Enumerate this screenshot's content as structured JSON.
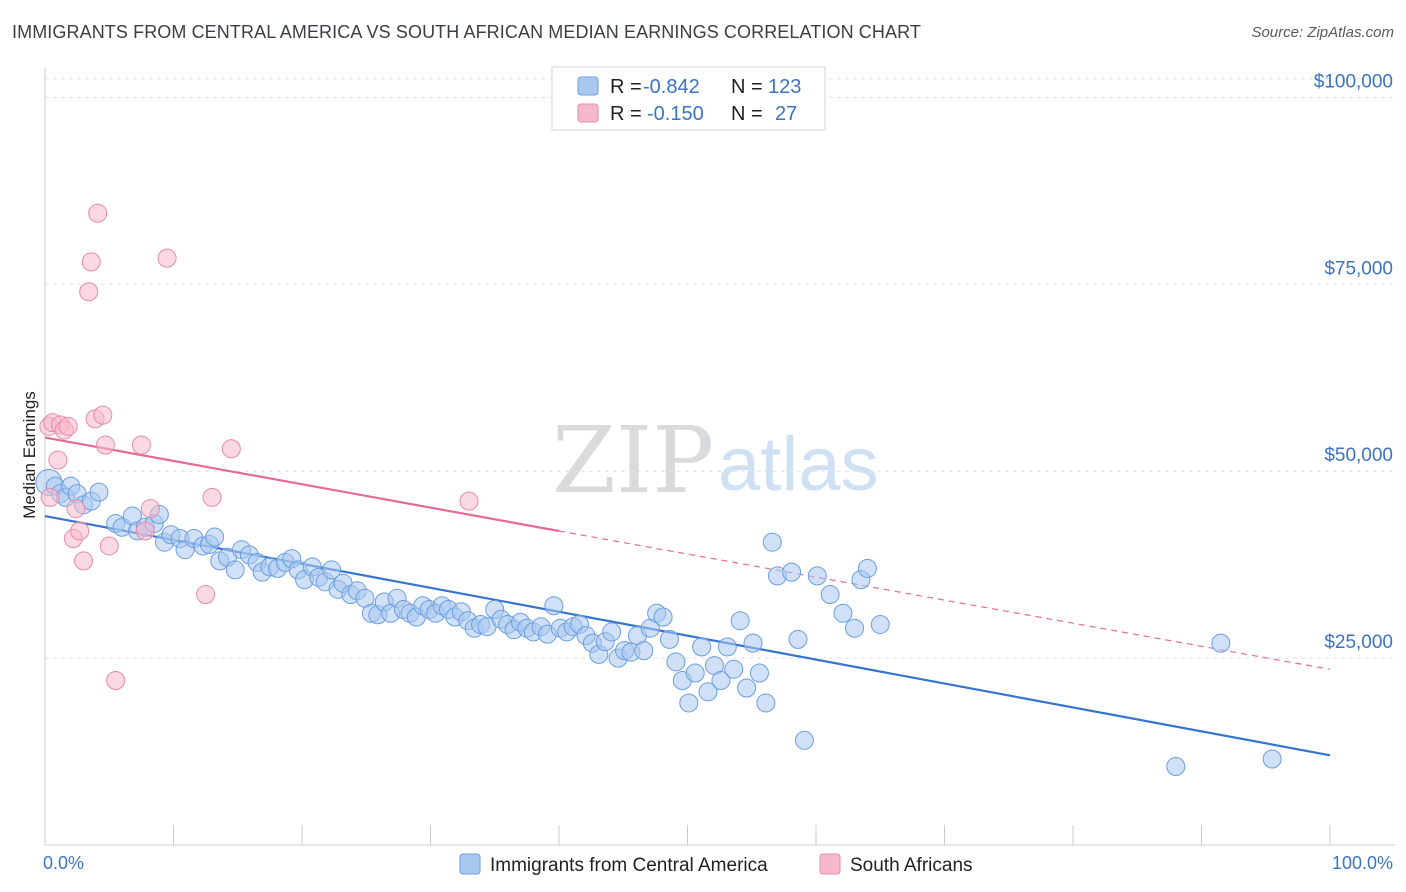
{
  "header": {
    "title": "IMMIGRANTS FROM CENTRAL AMERICA VS SOUTH AFRICAN MEDIAN EARNINGS CORRELATION CHART",
    "source": "Source: ZipAtlas.com"
  },
  "watermark": {
    "zip": "ZIP",
    "atlas": "atlas"
  },
  "legend_box": {
    "rows": [
      {
        "r_label": "R =",
        "r_value": "-0.842",
        "n_label": "N =",
        "n_value": "123",
        "color": "#a9c8f0",
        "stroke": "#6b9ee0"
      },
      {
        "r_label": "R =",
        "r_value": "-0.150",
        "n_label": "N =",
        "n_value": "27",
        "color": "#f6b9cb",
        "stroke": "#e88aa8"
      }
    ]
  },
  "chart_data": {
    "type": "scatter",
    "title": "IMMIGRANTS FROM CENTRAL AMERICA VS SOUTH AFRICAN MEDIAN EARNINGS CORRELATION CHART",
    "xlabel": "",
    "ylabel": "Median Earnings",
    "xlim": [
      0,
      100
    ],
    "ylim": [
      0,
      105000
    ],
    "x_tick_labels": [
      "0.0%",
      "100.0%"
    ],
    "y_ticks": [
      25000,
      50000,
      75000,
      100000
    ],
    "y_tick_labels": [
      "$25,000",
      "$50,000",
      "$75,000",
      "$100,000"
    ],
    "grid": true,
    "legend_position": "top-center",
    "series": [
      {
        "name": "Immigrants from Central America",
        "color": "#a9c8f0",
        "stroke": "#6b9ee0",
        "trend_color": "#3674d1",
        "trend": {
          "x": [
            0,
            100
          ],
          "y": [
            44000,
            12000
          ]
        },
        "points": [
          [
            0.3,
            48500
          ],
          [
            0.8,
            48000
          ],
          [
            1.2,
            47000
          ],
          [
            1.6,
            46500
          ],
          [
            2.0,
            48000
          ],
          [
            2.5,
            47000
          ],
          [
            3.0,
            45500
          ],
          [
            3.6,
            46000
          ],
          [
            4.2,
            47200
          ],
          [
            5.5,
            43000
          ],
          [
            6.0,
            42500
          ],
          [
            6.8,
            44000
          ],
          [
            7.2,
            42000
          ],
          [
            7.8,
            42500
          ],
          [
            8.5,
            43000
          ],
          [
            8.9,
            44200
          ],
          [
            9.3,
            40500
          ],
          [
            9.8,
            41500
          ],
          [
            10.5,
            41000
          ],
          [
            10.9,
            39500
          ],
          [
            11.6,
            41000
          ],
          [
            12.3,
            40000
          ],
          [
            12.8,
            40200
          ],
          [
            13.2,
            41200
          ],
          [
            13.6,
            38000
          ],
          [
            14.2,
            38500
          ],
          [
            14.8,
            36800
          ],
          [
            15.3,
            39500
          ],
          [
            15.9,
            38800
          ],
          [
            16.5,
            37800
          ],
          [
            16.9,
            36500
          ],
          [
            17.5,
            37200
          ],
          [
            18.1,
            37000
          ],
          [
            18.7,
            37800
          ],
          [
            19.2,
            38300
          ],
          [
            19.7,
            36800
          ],
          [
            20.2,
            35500
          ],
          [
            20.8,
            37200
          ],
          [
            21.3,
            35800
          ],
          [
            21.8,
            35200
          ],
          [
            22.3,
            36800
          ],
          [
            22.8,
            34200
          ],
          [
            23.2,
            35000
          ],
          [
            23.8,
            33500
          ],
          [
            24.3,
            34000
          ],
          [
            24.9,
            33000
          ],
          [
            25.4,
            31000
          ],
          [
            25.9,
            30800
          ],
          [
            26.4,
            32500
          ],
          [
            26.9,
            31000
          ],
          [
            27.4,
            33000
          ],
          [
            27.9,
            31500
          ],
          [
            28.4,
            31000
          ],
          [
            28.9,
            30500
          ],
          [
            29.4,
            32000
          ],
          [
            29.9,
            31500
          ],
          [
            30.4,
            31000
          ],
          [
            30.9,
            32000
          ],
          [
            31.4,
            31500
          ],
          [
            31.9,
            30500
          ],
          [
            32.4,
            31200
          ],
          [
            32.9,
            30000
          ],
          [
            33.4,
            29000
          ],
          [
            33.9,
            29500
          ],
          [
            34.4,
            29200
          ],
          [
            35.0,
            31500
          ],
          [
            35.5,
            30200
          ],
          [
            36.0,
            29500
          ],
          [
            36.5,
            28800
          ],
          [
            37.0,
            29800
          ],
          [
            37.5,
            29000
          ],
          [
            38.0,
            28500
          ],
          [
            38.6,
            29200
          ],
          [
            39.1,
            28200
          ],
          [
            39.6,
            32000
          ],
          [
            40.1,
            29000
          ],
          [
            40.6,
            28500
          ],
          [
            41.1,
            29200
          ],
          [
            41.6,
            29500
          ],
          [
            42.1,
            28000
          ],
          [
            42.6,
            27000
          ],
          [
            43.1,
            25500
          ],
          [
            43.6,
            27200
          ],
          [
            44.1,
            28500
          ],
          [
            44.6,
            25000
          ],
          [
            45.1,
            26000
          ],
          [
            45.6,
            25800
          ],
          [
            46.1,
            28000
          ],
          [
            46.6,
            26000
          ],
          [
            47.1,
            29000
          ],
          [
            47.6,
            31000
          ],
          [
            48.1,
            30500
          ],
          [
            48.6,
            27500
          ],
          [
            49.1,
            24500
          ],
          [
            49.6,
            22000
          ],
          [
            50.1,
            19000
          ],
          [
            50.6,
            23000
          ],
          [
            51.1,
            26500
          ],
          [
            51.6,
            20500
          ],
          [
            52.1,
            24000
          ],
          [
            52.6,
            22000
          ],
          [
            53.1,
            26500
          ],
          [
            53.6,
            23500
          ],
          [
            54.1,
            30000
          ],
          [
            54.6,
            21000
          ],
          [
            55.1,
            27000
          ],
          [
            55.6,
            23000
          ],
          [
            56.1,
            19000
          ],
          [
            56.6,
            40500
          ],
          [
            57.0,
            36000
          ],
          [
            58.1,
            36500
          ],
          [
            58.6,
            27500
          ],
          [
            59.1,
            14000
          ],
          [
            60.1,
            36000
          ],
          [
            61.1,
            33500
          ],
          [
            62.1,
            31000
          ],
          [
            63.0,
            29000
          ],
          [
            63.5,
            35500
          ],
          [
            64.0,
            37000
          ],
          [
            65.0,
            29500
          ],
          [
            88.0,
            10500
          ],
          [
            91.5,
            27000
          ],
          [
            95.5,
            11500
          ]
        ]
      },
      {
        "name": "South Africans",
        "color": "#f6b9cb",
        "stroke": "#e88aa8",
        "trend_color": "#e8689a",
        "trend": {
          "x": [
            0,
            40
          ],
          "y": [
            54500,
            42000
          ]
        },
        "trend_dashed": {
          "x": [
            40,
            100
          ],
          "y": [
            42000,
            23500
          ]
        },
        "points": [
          [
            0.3,
            56000
          ],
          [
            0.6,
            56500
          ],
          [
            1.0,
            51500
          ],
          [
            1.2,
            56200
          ],
          [
            1.5,
            55500
          ],
          [
            1.8,
            56000
          ],
          [
            2.2,
            41000
          ],
          [
            2.4,
            45000
          ],
          [
            2.7,
            42000
          ],
          [
            3.0,
            38000
          ],
          [
            3.4,
            74000
          ],
          [
            3.6,
            78000
          ],
          [
            3.9,
            57000
          ],
          [
            4.1,
            84500
          ],
          [
            4.5,
            57500
          ],
          [
            4.7,
            53500
          ],
          [
            5.0,
            40000
          ],
          [
            5.5,
            22000
          ],
          [
            7.5,
            53500
          ],
          [
            7.8,
            42000
          ],
          [
            8.2,
            45000
          ],
          [
            9.5,
            78500
          ],
          [
            12.5,
            33500
          ],
          [
            13.0,
            46500
          ],
          [
            14.5,
            53000
          ],
          [
            33.0,
            46000
          ],
          [
            0.4,
            46500
          ]
        ]
      }
    ]
  },
  "bottom_legend": {
    "items": [
      {
        "label": "Immigrants from Central America",
        "color": "#a9c8f0",
        "stroke": "#6b9ee0"
      },
      {
        "label": "South Africans",
        "color": "#f6b9cb",
        "stroke": "#e88aa8"
      }
    ]
  }
}
